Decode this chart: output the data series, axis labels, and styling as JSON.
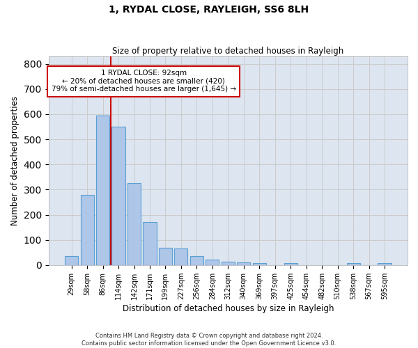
{
  "title": "1, RYDAL CLOSE, RAYLEIGH, SS6 8LH",
  "subtitle": "Size of property relative to detached houses in Rayleigh",
  "xlabel": "Distribution of detached houses by size in Rayleigh",
  "ylabel": "Number of detached properties",
  "bar_labels": [
    "29sqm",
    "58sqm",
    "86sqm",
    "114sqm",
    "142sqm",
    "171sqm",
    "199sqm",
    "227sqm",
    "256sqm",
    "284sqm",
    "312sqm",
    "340sqm",
    "369sqm",
    "397sqm",
    "425sqm",
    "454sqm",
    "482sqm",
    "510sqm",
    "538sqm",
    "567sqm",
    "595sqm"
  ],
  "bar_values": [
    35,
    280,
    595,
    550,
    325,
    170,
    68,
    65,
    35,
    22,
    12,
    10,
    8,
    0,
    8,
    0,
    0,
    0,
    8,
    0,
    8
  ],
  "bar_color": "#aec6e8",
  "bar_edge_color": "#5a9fd4",
  "grid_color": "#cccccc",
  "background_color": "#dde5f0",
  "vline_x_index": 2,
  "vline_color": "#cc0000",
  "annotation_text": "1 RYDAL CLOSE: 92sqm\n← 20% of detached houses are smaller (420)\n79% of semi-detached houses are larger (1,645) →",
  "annotation_box_color": "#cc0000",
  "ylim": [
    0,
    830
  ],
  "yticks": [
    0,
    100,
    200,
    300,
    400,
    500,
    600,
    700,
    800
  ],
  "footer_line1": "Contains HM Land Registry data © Crown copyright and database right 2024.",
  "footer_line2": "Contains public sector information licensed under the Open Government Licence v3.0."
}
